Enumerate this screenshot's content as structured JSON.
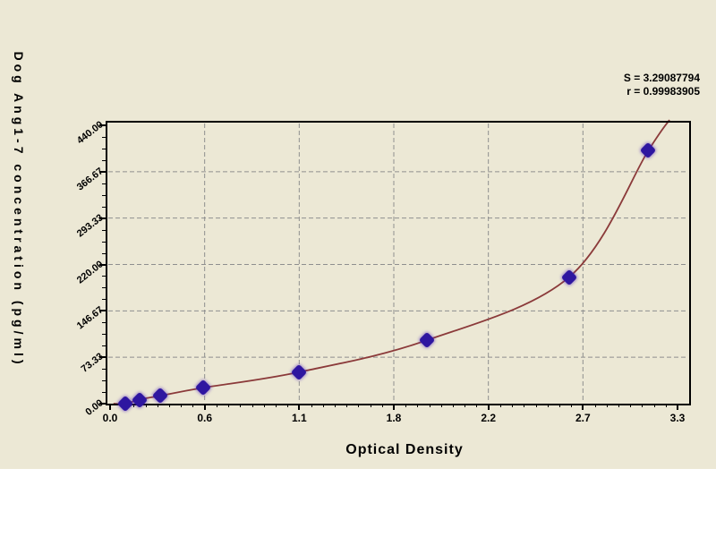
{
  "annotation": {
    "s_label": "S = 3.29087794",
    "r_label": "r = 0.99983905"
  },
  "chart_data": {
    "type": "scatter",
    "xlabel": "Optical Density",
    "ylabel": "Dog Ang1-7 concentration (pg/ml)",
    "xlim": [
      0,
      3.3
    ],
    "ylim": [
      0,
      440
    ],
    "x_tick_labels": [
      "0.0",
      "0.6",
      "1.1",
      "1.8",
      "2.2",
      "2.7",
      "3.3"
    ],
    "y_tick_labels": [
      "0.00",
      "73.33",
      "146.67",
      "220.00",
      "293.33",
      "366.67",
      "440.00"
    ],
    "grid": "dashed gray at major ticks",
    "legend": "none",
    "series": [
      {
        "name": "standard-points",
        "type": "scatter",
        "points": [
          {
            "od": 0.09,
            "concentration": 0
          },
          {
            "od": 0.17,
            "concentration": 6.25
          },
          {
            "od": 0.29,
            "concentration": 12.5
          },
          {
            "od": 0.54,
            "concentration": 25
          },
          {
            "od": 1.1,
            "concentration": 50
          },
          {
            "od": 1.84,
            "concentration": 100
          },
          {
            "od": 2.67,
            "concentration": 200
          },
          {
            "od": 3.13,
            "concentration": 400
          }
        ]
      },
      {
        "name": "fitted-curve",
        "type": "line",
        "description": "smooth monotone fit through standard points"
      }
    ],
    "fit_stats": {
      "S": "3.29087794",
      "r": "0.99983905"
    },
    "colors": {
      "background": "#ECE8D5",
      "point": "#2E16A0",
      "curve": "#8B3A3A",
      "grid": "#8F8F8F",
      "axis": "#000000"
    }
  }
}
